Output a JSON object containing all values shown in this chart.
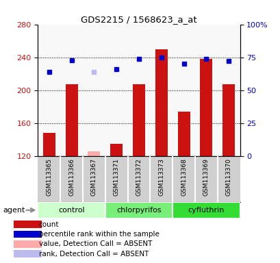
{
  "title": "GDS2215 / 1568623_a_at",
  "samples": [
    "GSM113365",
    "GSM113366",
    "GSM113367",
    "GSM113371",
    "GSM113372",
    "GSM113373",
    "GSM113368",
    "GSM113369",
    "GSM113370"
  ],
  "groups": [
    {
      "name": "control",
      "indices": [
        0,
        1,
        2
      ],
      "color": "#ccffcc"
    },
    {
      "name": "chlorpyrifos",
      "indices": [
        3,
        4,
        5
      ],
      "color": "#77ee77"
    },
    {
      "name": "cyfluthrin",
      "indices": [
        6,
        7,
        8
      ],
      "color": "#33dd33"
    }
  ],
  "bar_values": [
    148,
    207,
    null,
    135,
    207,
    250,
    174,
    238,
    207
  ],
  "bar_absent_values": [
    null,
    null,
    126,
    null,
    null,
    null,
    null,
    null,
    null
  ],
  "rank_values": [
    64,
    73,
    null,
    66,
    74,
    75,
    70,
    74,
    72
  ],
  "rank_absent_values": [
    null,
    null,
    64,
    null,
    null,
    null,
    null,
    null,
    null
  ],
  "bar_color": "#cc1111",
  "bar_absent_color": "#ffaaaa",
  "rank_color": "#0000cc",
  "rank_absent_color": "#bbbbee",
  "ylim_left": [
    120,
    280
  ],
  "ylim_right": [
    0,
    100
  ],
  "yticks_left": [
    120,
    160,
    200,
    240,
    280
  ],
  "yticks_right": [
    0,
    25,
    50,
    75,
    100
  ],
  "ylabel_left_color": "#cc1111",
  "ylabel_right_color": "#0000cc",
  "agent_label": "agent",
  "sample_bg_color": "#d0d0d0",
  "legend": [
    {
      "label": "count",
      "color": "#cc1111"
    },
    {
      "label": "percentile rank within the sample",
      "color": "#0000cc"
    },
    {
      "label": "value, Detection Call = ABSENT",
      "color": "#ffaaaa"
    },
    {
      "label": "rank, Detection Call = ABSENT",
      "color": "#bbbbee"
    }
  ],
  "background_color": "#ffffff",
  "plot_bg_color": "#f8f8f8"
}
